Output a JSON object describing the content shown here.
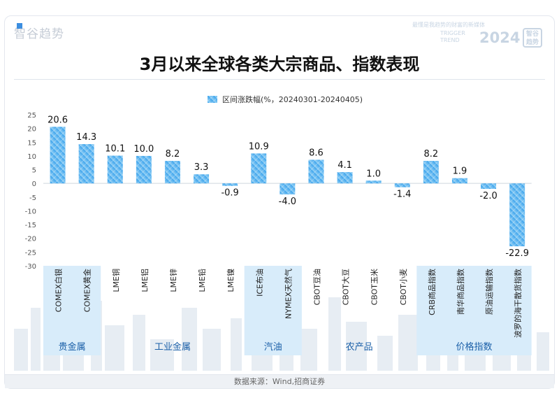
{
  "brand": {
    "name": "智谷趋势"
  },
  "watermark": {
    "slogan": "最懂是我趋势的财富的新媒体",
    "trigger": "TRIGGER",
    "trend": "TREND",
    "year": "2024",
    "badge": "智谷趋势"
  },
  "title": "3月以来全球各类大宗商品、指数表现",
  "source": "数据来源：Wind,招商证券",
  "colors": {
    "bar": "#4aaef0",
    "bar_light": "#8ccdf5",
    "group_band": "#d8ecfa",
    "axis_text": "#555555"
  },
  "chart_data": {
    "type": "bar",
    "title": "3月以来全球各类大宗商品、指数表现",
    "legend": {
      "label": "区间涨跌幅(%，20240301-20240405)",
      "position": "top-center"
    },
    "ylim": [
      -30,
      25
    ],
    "yticks": [
      25,
      20,
      15,
      10,
      5,
      0,
      -5,
      -10,
      -15,
      -20,
      -25,
      -30
    ],
    "categories": [
      "COMEX白银",
      "COMEX黄金",
      "LME铜",
      "LME铝",
      "LME锌",
      "LME铅",
      "LME镍",
      "ICE布油",
      "NYMEX天然气",
      "CBOT豆油",
      "CBOT大豆",
      "CBOT玉米",
      "CBOT小麦",
      "CRB商品指数",
      "南华商品指数",
      "原油运输指数",
      "波罗的海干散货指数"
    ],
    "series": [
      {
        "name": "区间涨跌幅(%，20240301-20240405)",
        "values": [
          20.6,
          14.3,
          10.1,
          10.0,
          8.2,
          3.3,
          -0.9,
          10.9,
          -4.0,
          8.6,
          4.1,
          1.0,
          -1.4,
          8.2,
          1.9,
          -2.0,
          -22.9
        ]
      }
    ],
    "data_labels": [
      "20.6",
      "14.3",
      "10.1",
      "10.0",
      "8.2",
      "3.3",
      "-0.9",
      "10.9",
      "-4.0",
      "8.6",
      "4.1",
      "1.0",
      "-1.4",
      "8.2",
      "1.9",
      "-2.0",
      "-22.9"
    ],
    "groups": [
      {
        "label": "贵金属",
        "start": 0,
        "end": 1,
        "shaded": true
      },
      {
        "label": "工业金属",
        "start": 2,
        "end": 6,
        "shaded": false
      },
      {
        "label": "汽油",
        "start": 7,
        "end": 8,
        "shaded": true
      },
      {
        "label": "农产品",
        "start": 9,
        "end": 12,
        "shaded": false
      },
      {
        "label": "价格指数",
        "start": 13,
        "end": 16,
        "shaded": true
      }
    ],
    "grid": false
  }
}
